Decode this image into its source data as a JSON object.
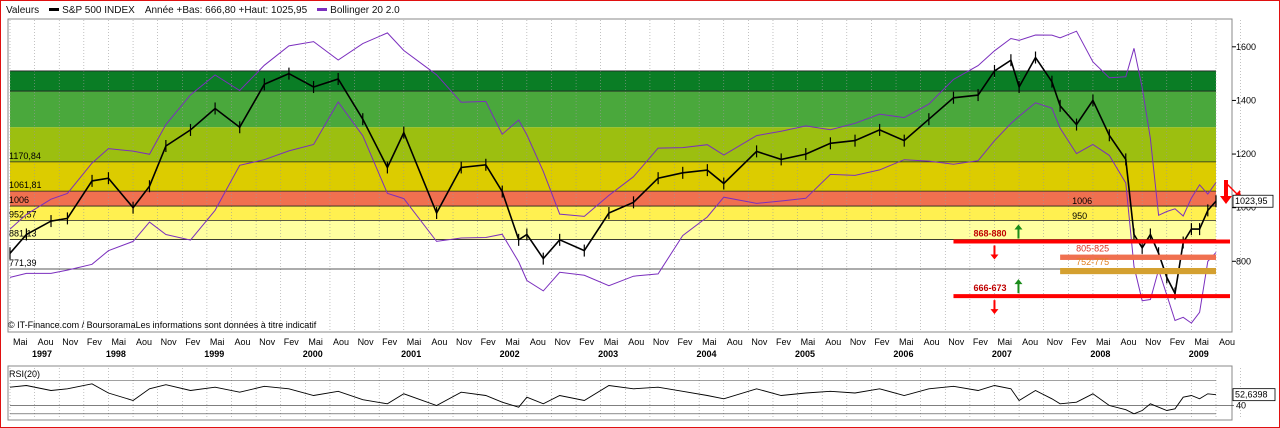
{
  "header": {
    "prefix": "Valeurs",
    "instrument": "S&P 500 INDEX",
    "range_text": "Année +Bas: 666,80 +Haut: 1025,95",
    "bollinger": "Bollinger 20 2.0"
  },
  "colors": {
    "price": "#000000",
    "bollinger": "#7b2fbe",
    "support_line": "#ff0000",
    "arrow_up": "#1a8c1a",
    "arrow_down": "#ff0000"
  },
  "credit": "© IT-Finance.com / BoursoramaLes informations sont données à titre indicatif",
  "chart_data": [
    {
      "type": "line",
      "title": "S&P 500 INDEX",
      "x_range": [
        "1997-05",
        "2009-08"
      ],
      "ylim": [
        540,
        1700
      ],
      "y_ticks": [
        800,
        1000,
        1200,
        1400,
        1600
      ],
      "grid": true,
      "x": [
        "1997-05",
        "1997-07",
        "1997-10",
        "1997-12",
        "1998-03",
        "1998-05",
        "1998-08",
        "1998-10",
        "1998-12",
        "1999-03",
        "1999-06",
        "1999-09",
        "1999-12",
        "2000-03",
        "2000-06",
        "2000-09",
        "2000-12",
        "2001-03",
        "2001-05",
        "2001-09",
        "2001-12",
        "2002-03",
        "2002-05",
        "2002-07",
        "2002-08",
        "2002-10",
        "2002-12",
        "2003-03",
        "2003-06",
        "2003-09",
        "2003-12",
        "2004-03",
        "2004-06",
        "2004-08",
        "2004-12",
        "2005-03",
        "2005-06",
        "2005-09",
        "2005-12",
        "2006-03",
        "2006-06",
        "2006-09",
        "2006-12",
        "2007-03",
        "2007-05",
        "2007-07",
        "2007-08",
        "2007-10",
        "2007-12",
        "2008-01",
        "2008-03",
        "2008-05",
        "2008-07",
        "2008-09",
        "2008-10",
        "2008-11",
        "2008-12",
        "2009-01",
        "2009-02",
        "2009-03",
        "2009-04",
        "2009-05",
        "2009-06",
        "2009-07",
        "2009-08"
      ],
      "series": [
        {
          "name": "S&P 500 INDEX",
          "values": [
            830,
            900,
            950,
            960,
            1100,
            1110,
            1000,
            1080,
            1230,
            1290,
            1370,
            1300,
            1460,
            1500,
            1450,
            1480,
            1330,
            1150,
            1280,
            980,
            1150,
            1160,
            1060,
            880,
            900,
            810,
            880,
            840,
            980,
            1020,
            1110,
            1130,
            1140,
            1090,
            1210,
            1180,
            1200,
            1240,
            1250,
            1290,
            1250,
            1330,
            1410,
            1420,
            1510,
            1550,
            1450,
            1560,
            1470,
            1380,
            1310,
            1400,
            1270,
            1180,
            900,
            850,
            900,
            830,
            740,
            680,
            870,
            920,
            920,
            990,
            1024
          ]
        }
      ],
      "price_bands": [
        {
          "from": 1435,
          "to": 1510,
          "color": "#0a7d25"
        },
        {
          "from": 1300,
          "to": 1435,
          "color": "#4aa83c"
        },
        {
          "from": 1170.84,
          "to": 1300,
          "color": "#9cbf10"
        },
        {
          "from": 1061.81,
          "to": 1170.84,
          "color": "#dccc00"
        },
        {
          "from": 1006,
          "to": 1061.81,
          "color": "#f07050"
        },
        {
          "from": 952.57,
          "to": 1006,
          "color": "#fff050"
        },
        {
          "from": 881,
          "to": 952.57,
          "color": "#ffffa0"
        }
      ],
      "level_labels": [
        "1170,84",
        "1061,81",
        "1006",
        "952,57",
        "881,13",
        "771,39"
      ],
      "annotations": [
        {
          "label": "1006",
          "value": 1006
        },
        {
          "label": "950",
          "value": 950
        },
        {
          "label": "868-880",
          "value": 874
        },
        {
          "label": "805-825",
          "value": 815
        },
        {
          "label": "752-775",
          "value": 763
        },
        {
          "label": "666-673",
          "value": 670
        }
      ],
      "last_value_label": "1023,95",
      "x_month_labels": [
        "Mai",
        "Aou",
        "Nov",
        "Fev",
        "Mai",
        "Aou",
        "Nov",
        "Fev",
        "Mai",
        "Aou",
        "Nov",
        "Fev",
        "Mai",
        "Aou",
        "Nov",
        "Fev",
        "Mai",
        "Aou",
        "Nov",
        "Fev",
        "Mai",
        "Aou",
        "Nov",
        "Fev",
        "Mai",
        "Aou",
        "Nov",
        "Fev",
        "Mai",
        "Aou",
        "Nov",
        "Fev",
        "Mai",
        "Aou",
        "Nov",
        "Fev",
        "Mai",
        "Aou",
        "Nov",
        "Fev",
        "Mai",
        "Aou",
        "Nov",
        "Fev",
        "Mai",
        "Aou",
        "Nov",
        "Fev",
        "Mai",
        "Aou"
      ],
      "x_year_labels": [
        "1997",
        "1998",
        "1999",
        "2000",
        "2001",
        "2002",
        "2003",
        "2004",
        "2005",
        "2006",
        "2007",
        "2008",
        "2009"
      ]
    },
    {
      "type": "line",
      "title": "RSI(20)",
      "ylim": [
        25,
        85
      ],
      "y_ticks": [
        40
      ],
      "last_value_label": "52,6398",
      "series": [
        {
          "name": "RSI(20)",
          "values": [
            62,
            64,
            58,
            60,
            66,
            55,
            46,
            60,
            65,
            58,
            62,
            56,
            63,
            60,
            52,
            57,
            47,
            42,
            54,
            40,
            56,
            52,
            44,
            38,
            50,
            42,
            52,
            46,
            64,
            60,
            62,
            57,
            52,
            48,
            60,
            52,
            55,
            57,
            55,
            60,
            52,
            60,
            63,
            58,
            64,
            60,
            46,
            58,
            48,
            42,
            44,
            54,
            40,
            35,
            30,
            34,
            42,
            38,
            34,
            36,
            50,
            52,
            48,
            54,
            53
          ]
        }
      ]
    }
  ]
}
